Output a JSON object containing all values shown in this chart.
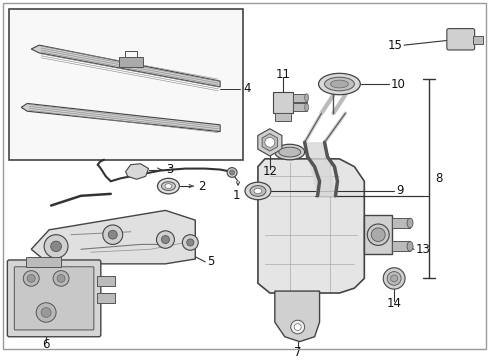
{
  "background_color": "#ffffff",
  "fig_width": 4.89,
  "fig_height": 3.6,
  "dpi": 100,
  "line_color": "#333333",
  "label_fontsize": 8.5
}
